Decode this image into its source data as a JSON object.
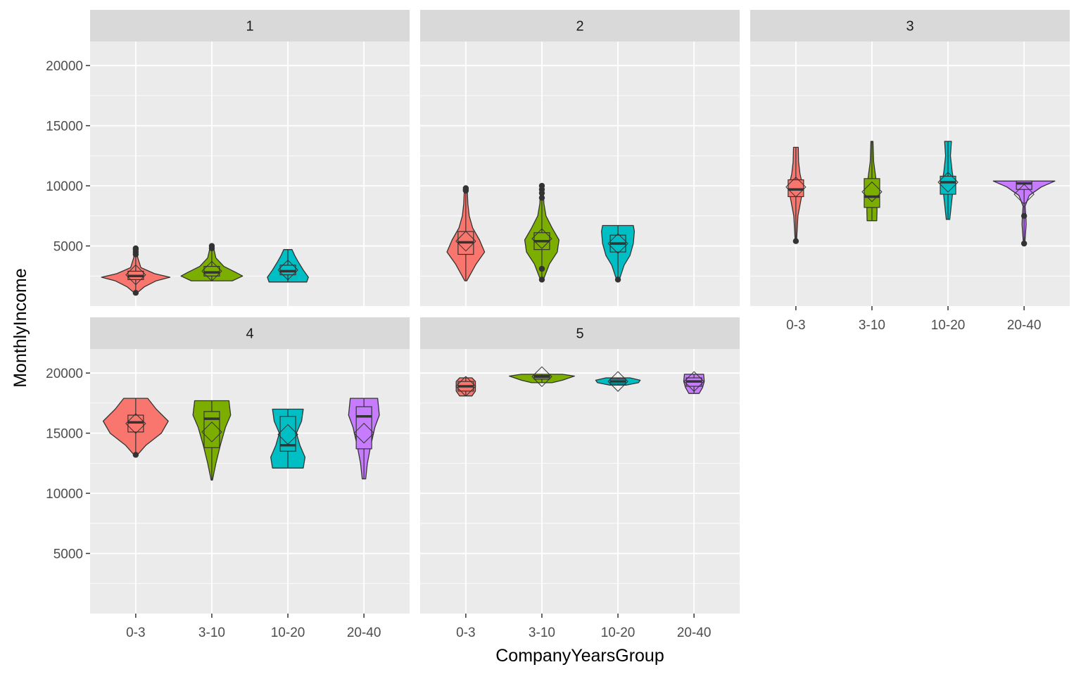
{
  "chart_data": {
    "type": "violin",
    "xlabel": "CompanyYearsGroup",
    "ylabel": "MonthlyIncome",
    "categories": [
      "0-3",
      "3-10",
      "10-20",
      "20-40"
    ],
    "ylim": [
      0,
      22000
    ],
    "yticks": [
      5000,
      10000,
      15000,
      20000
    ],
    "y_tick_labels": [
      "5000",
      "10000",
      "15000",
      "20000"
    ],
    "grid": true,
    "legend": "none",
    "colors": {
      "0-3": "#F8766D",
      "3-10": "#7CAE00",
      "10-20": "#00BFC4",
      "20-40": "#C77CFF",
      "panel_bg": "#EBEBEB",
      "strip_bg": "#D9D9D9",
      "grid": "#FFFFFF",
      "outline": "#333333"
    },
    "panels": [
      {
        "strip": "1",
        "groups": [
          {
            "category": "0-3",
            "min": 1100,
            "max": 4800,
            "q1": 2200,
            "median": 2500,
            "q3": 2900,
            "mean": 2600,
            "profile": [
              [
                1100,
                0.04
              ],
              [
                1600,
                0.25
              ],
              [
                2100,
                0.6
              ],
              [
                2400,
                1
              ],
              [
                2700,
                0.55
              ],
              [
                3200,
                0.15
              ],
              [
                4000,
                0.06
              ],
              [
                4800,
                0.03
              ]
            ],
            "outliers": [
              1100,
              4300,
              4500,
              4700,
              4800
            ]
          },
          {
            "category": "3-10",
            "min": 2100,
            "max": 5000,
            "q1": 2500,
            "median": 2800,
            "q3": 3300,
            "mean": 2900,
            "profile": [
              [
                2100,
                0.6
              ],
              [
                2500,
                0.9
              ],
              [
                2800,
                0.7
              ],
              [
                3300,
                0.35
              ],
              [
                4000,
                0.12
              ],
              [
                5000,
                0.04
              ]
            ],
            "outliers": [
              4800,
              5000
            ]
          },
          {
            "category": "10-20",
            "min": 2000,
            "max": 4700,
            "q1": 2600,
            "median": 2900,
            "q3": 3400,
            "mean": 3000,
            "profile": [
              [
                2000,
                0.55
              ],
              [
                2400,
                0.6
              ],
              [
                3000,
                0.45
              ],
              [
                3700,
                0.3
              ],
              [
                4200,
                0.2
              ],
              [
                4700,
                0.12
              ]
            ],
            "outliers": []
          }
        ]
      },
      {
        "strip": "2",
        "groups": [
          {
            "category": "0-3",
            "min": 2100,
            "max": 9800,
            "q1": 4300,
            "median": 5300,
            "q3": 6200,
            "mean": 5400,
            "profile": [
              [
                2100,
                0.03
              ],
              [
                3500,
                0.3
              ],
              [
                4500,
                0.55
              ],
              [
                5500,
                0.4
              ],
              [
                6500,
                0.2
              ],
              [
                7500,
                0.1
              ],
              [
                8500,
                0.06
              ],
              [
                9800,
                0.04
              ]
            ],
            "outliers": [
              9600,
              9700,
              9800
            ]
          },
          {
            "category": "3-10",
            "min": 2100,
            "max": 10000,
            "q1": 4700,
            "median": 5400,
            "q3": 6100,
            "mean": 5600,
            "profile": [
              [
                2100,
                0.03
              ],
              [
                3500,
                0.22
              ],
              [
                4500,
                0.45
              ],
              [
                5500,
                0.5
              ],
              [
                6500,
                0.3
              ],
              [
                7500,
                0.12
              ],
              [
                8500,
                0.06
              ],
              [
                10000,
                0.03
              ]
            ],
            "outliers": [
              2200,
              3100,
              9000,
              9400,
              9700,
              10000
            ]
          },
          {
            "category": "10-20",
            "min": 2100,
            "max": 6700,
            "q1": 4500,
            "median": 5200,
            "q3": 5900,
            "mean": 5200,
            "profile": [
              [
                2100,
                0.03
              ],
              [
                3400,
                0.18
              ],
              [
                4200,
                0.35
              ],
              [
                5200,
                0.45
              ],
              [
                6200,
                0.48
              ],
              [
                6700,
                0.45
              ]
            ],
            "outliers": [
              2200
            ]
          }
        ]
      },
      {
        "strip": "3",
        "groups": [
          {
            "category": "0-3",
            "min": 5400,
            "max": 13200,
            "q1": 9100,
            "median": 9700,
            "q3": 10500,
            "mean": 9900,
            "profile": [
              [
                5400,
                0.02
              ],
              [
                7500,
                0.06
              ],
              [
                9000,
                0.16
              ],
              [
                10000,
                0.2
              ],
              [
                11000,
                0.12
              ],
              [
                12000,
                0.08
              ],
              [
                13200,
                0.07
              ]
            ],
            "outliers": [
              5400
            ]
          },
          {
            "category": "3-10",
            "min": 7100,
            "max": 13700,
            "q1": 8200,
            "median": 9100,
            "q3": 10600,
            "mean": 9500,
            "profile": [
              [
                7100,
                0.14
              ],
              [
                8000,
                0.15
              ],
              [
                9000,
                0.13
              ],
              [
                10500,
                0.12
              ],
              [
                12000,
                0.05
              ],
              [
                13700,
                0.03
              ]
            ],
            "outliers": []
          },
          {
            "category": "10-20",
            "min": 7200,
            "max": 13700,
            "q1": 9300,
            "median": 10300,
            "q3": 10800,
            "mean": 10300,
            "profile": [
              [
                7200,
                0.05
              ],
              [
                8500,
                0.1
              ],
              [
                9800,
                0.15
              ],
              [
                10500,
                0.16
              ],
              [
                11200,
                0.12
              ],
              [
                12500,
                0.07
              ],
              [
                13700,
                0.1
              ]
            ],
            "outliers": []
          },
          {
            "category": "20-40",
            "min": 5200,
            "max": 10400,
            "q1": 9700,
            "median": 10200,
            "q3": 10400,
            "mean": 9300,
            "profile": [
              [
                5200,
                0.02
              ],
              [
                6000,
                0.04
              ],
              [
                6800,
                0.06
              ],
              [
                7500,
                0.05
              ],
              [
                8300,
                0.03
              ],
              [
                9200,
                0.15
              ],
              [
                9900,
                0.5
              ],
              [
                10400,
                0.9
              ]
            ],
            "outliers": [
              5200,
              7500
            ]
          }
        ]
      },
      {
        "strip": "4",
        "groups": [
          {
            "category": "0-3",
            "min": 13200,
            "max": 17900,
            "q1": 15100,
            "median": 15900,
            "q3": 16500,
            "mean": 15800,
            "profile": [
              [
                13200,
                0.05
              ],
              [
                14000,
                0.3
              ],
              [
                15000,
                0.75
              ],
              [
                16000,
                0.95
              ],
              [
                17000,
                0.6
              ],
              [
                17900,
                0.35
              ]
            ],
            "outliers": [
              13200
            ]
          },
          {
            "category": "3-10",
            "min": 11100,
            "max": 17700,
            "q1": 13800,
            "median": 16200,
            "q3": 16800,
            "mean": 15100,
            "profile": [
              [
                11100,
                0.02
              ],
              [
                12500,
                0.12
              ],
              [
                14000,
                0.25
              ],
              [
                15500,
                0.4
              ],
              [
                16500,
                0.55
              ],
              [
                17700,
                0.5
              ]
            ],
            "outliers": []
          },
          {
            "category": "10-20",
            "min": 12100,
            "max": 17000,
            "q1": 13500,
            "median": 14000,
            "q3": 16400,
            "mean": 14900,
            "profile": [
              [
                12100,
                0.45
              ],
              [
                13000,
                0.5
              ],
              [
                14000,
                0.35
              ],
              [
                15000,
                0.25
              ],
              [
                16000,
                0.4
              ],
              [
                17000,
                0.45
              ]
            ],
            "outliers": []
          },
          {
            "category": "20-40",
            "min": 11200,
            "max": 17900,
            "q1": 13700,
            "median": 16400,
            "q3": 17200,
            "mean": 15000,
            "profile": [
              [
                11200,
                0.05
              ],
              [
                12500,
                0.1
              ],
              [
                14000,
                0.2
              ],
              [
                15500,
                0.32
              ],
              [
                16500,
                0.45
              ],
              [
                17900,
                0.4
              ]
            ],
            "outliers": []
          }
        ]
      },
      {
        "strip": "5",
        "groups": [
          {
            "category": "0-3",
            "min": 18100,
            "max": 19600,
            "q1": 18500,
            "median": 18900,
            "q3": 19300,
            "mean": 18900,
            "profile": [
              [
                18100,
                0.18
              ],
              [
                18500,
                0.28
              ],
              [
                18900,
                0.28
              ],
              [
                19300,
                0.28
              ],
              [
                19600,
                0.18
              ]
            ],
            "outliers": []
          },
          {
            "category": "3-10",
            "min": 19200,
            "max": 19900,
            "q1": 19500,
            "median": 19700,
            "q3": 19800,
            "mean": 19700,
            "profile": [
              [
                19200,
                0.3
              ],
              [
                19400,
                0.6
              ],
              [
                19600,
                0.8
              ],
              [
                19750,
                0.95
              ],
              [
                19900,
                0.6
              ]
            ],
            "outliers": []
          },
          {
            "category": "10-20",
            "min": 19000,
            "max": 19600,
            "q1": 19100,
            "median": 19300,
            "q3": 19500,
            "mean": 19300,
            "profile": [
              [
                19000,
                0.25
              ],
              [
                19200,
                0.6
              ],
              [
                19400,
                0.65
              ],
              [
                19600,
                0.35
              ]
            ],
            "outliers": []
          },
          {
            "category": "20-40",
            "min": 18300,
            "max": 19900,
            "q1": 18900,
            "median": 19300,
            "q3": 19600,
            "mean": 19300,
            "profile": [
              [
                18300,
                0.15
              ],
              [
                18800,
                0.25
              ],
              [
                19300,
                0.3
              ],
              [
                19900,
                0.28
              ]
            ],
            "outliers": []
          }
        ]
      }
    ]
  }
}
